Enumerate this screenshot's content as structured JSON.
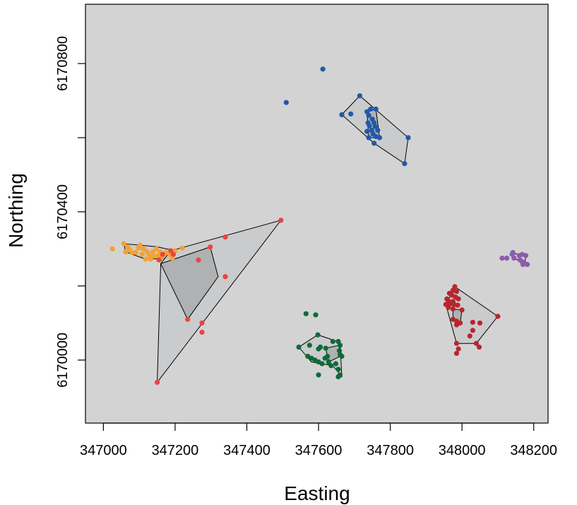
{
  "chart_data": {
    "type": "scatter",
    "xlabel": "Easting",
    "ylabel": "Northing",
    "xlim": [
      346950,
      348240
    ],
    "ylim": [
      6169830,
      6170960
    ],
    "xticks": [
      347000,
      347200,
      347400,
      347600,
      347800,
      348000,
      348200
    ],
    "xtick_labels": [
      "347000",
      "347200",
      "347400",
      "347600",
      "347800",
      "348000",
      "348200"
    ],
    "yticks": [
      6170000,
      6170200,
      6170400,
      6170600,
      6170800
    ],
    "ytick_labels": [
      "6170000",
      "",
      "6170400",
      "",
      "6170800"
    ],
    "grid": false,
    "colors": {
      "panel": "#d3d3d3",
      "hull_fill": "#c9cacb",
      "hull_inner_fill": "#a6a8a9",
      "blue": "#2258a8",
      "orange": "#f3a233",
      "red": "#e84443",
      "green": "#0d6b37",
      "purple": "#8d5ab0",
      "darkred": "#b8262f"
    },
    "series": [
      {
        "color": "#2258a8",
        "points": [
          [
            347612,
            6170785
          ],
          [
            347510,
            6170695
          ],
          [
            347715,
            6170713
          ],
          [
            347665,
            6170662
          ],
          [
            347690,
            6170664
          ],
          [
            347735,
            6170670
          ],
          [
            347745,
            6170677
          ],
          [
            347760,
            6170677
          ],
          [
            347740,
            6170660
          ],
          [
            347750,
            6170650
          ],
          [
            347738,
            6170640
          ],
          [
            347755,
            6170640
          ],
          [
            347742,
            6170632
          ],
          [
            347758,
            6170630
          ],
          [
            347748,
            6170620
          ],
          [
            347765,
            6170620
          ],
          [
            347735,
            6170617
          ],
          [
            347752,
            6170610
          ],
          [
            347760,
            6170603
          ],
          [
            347740,
            6170600
          ],
          [
            347770,
            6170600
          ],
          [
            347850,
            6170600
          ],
          [
            347755,
            6170585
          ],
          [
            347840,
            6170530
          ]
        ],
        "hulls": [
          [
            [
              347665,
              6170662
            ],
            [
              347715,
              6170713
            ],
            [
              347850,
              6170600
            ],
            [
              347840,
              6170530
            ],
            [
              347755,
              6170585
            ],
            [
              347665,
              6170662
            ]
          ],
          [
            [
              347735,
              6170670
            ],
            [
              347760,
              6170677
            ],
            [
              347770,
              6170600
            ],
            [
              347740,
              6170600
            ],
            [
              347735,
              6170670
            ]
          ]
        ]
      },
      {
        "color": "#f3a233",
        "points": [
          [
            347025,
            6170300
          ],
          [
            347057,
            6170314
          ],
          [
            347062,
            6170292
          ],
          [
            347068,
            6170306
          ],
          [
            347073,
            6170298
          ],
          [
            347080,
            6170290
          ],
          [
            347090,
            6170290
          ],
          [
            347098,
            6170302
          ],
          [
            347102,
            6170310
          ],
          [
            347108,
            6170285
          ],
          [
            347112,
            6170300
          ],
          [
            347118,
            6170272
          ],
          [
            347122,
            6170292
          ],
          [
            347128,
            6170282
          ],
          [
            347132,
            6170272
          ],
          [
            347138,
            6170292
          ],
          [
            347142,
            6170280
          ],
          [
            347148,
            6170300
          ],
          [
            347152,
            6170282
          ],
          [
            347158,
            6170292
          ],
          [
            347162,
            6170275
          ],
          [
            347168,
            6170285
          ],
          [
            347175,
            6170290
          ],
          [
            347185,
            6170285
          ],
          [
            347192,
            6170275
          ],
          [
            347200,
            6170295
          ],
          [
            347220,
            6170302
          ]
        ],
        "hulls": [
          [
            [
              347057,
              6170314
            ],
            [
              347062,
              6170292
            ],
            [
              347118,
              6170272
            ],
            [
              347192,
              6170275
            ],
            [
              347200,
              6170295
            ],
            [
              347148,
              6170306
            ],
            [
              347057,
              6170314
            ]
          ]
        ]
      },
      {
        "color": "#e84443",
        "points": [
          [
            347495,
            6170377
          ],
          [
            347340,
            6170332
          ],
          [
            347298,
            6170305
          ],
          [
            347188,
            6170295
          ],
          [
            347195,
            6170285
          ],
          [
            347165,
            6170285
          ],
          [
            347155,
            6170270
          ],
          [
            347265,
            6170270
          ],
          [
            347340,
            6170225
          ],
          [
            347235,
            6170110
          ],
          [
            347275,
            6170100
          ],
          [
            347275,
            6170075
          ],
          [
            347150,
            6169940
          ]
        ],
        "hulls": [
          [
            [
              347150,
              6169940
            ],
            [
              347160,
              6170260
            ],
            [
              347188,
              6170295
            ],
            [
              347495,
              6170377
            ],
            [
              347150,
              6169940
            ]
          ],
          [
            [
              347160,
              6170260
            ],
            [
              347235,
              6170110
            ],
            [
              347320,
              6170225
            ],
            [
              347298,
              6170305
            ],
            [
              347160,
              6170260
            ]
          ]
        ]
      },
      {
        "color": "#0d6b37",
        "points": [
          [
            347565,
            6170125
          ],
          [
            347592,
            6170122
          ],
          [
            347598,
            6170068
          ],
          [
            347640,
            6170050
          ],
          [
            347655,
            6170050
          ],
          [
            347660,
            6170040
          ],
          [
            347545,
            6170035
          ],
          [
            347575,
            6170040
          ],
          [
            347600,
            6170030
          ],
          [
            347605,
            6170035
          ],
          [
            347620,
            6170032
          ],
          [
            347658,
            6170025
          ],
          [
            347660,
            6170015
          ],
          [
            347665,
            6170010
          ],
          [
            347570,
            6170010
          ],
          [
            347580,
            6170005
          ],
          [
            347590,
            6170000
          ],
          [
            347600,
            6169995
          ],
          [
            347610,
            6169990
          ],
          [
            347618,
            6170005
          ],
          [
            347625,
            6170010
          ],
          [
            347628,
            6169995
          ],
          [
            347635,
            6169985
          ],
          [
            347648,
            6169990
          ],
          [
            347655,
            6169975
          ],
          [
            347660,
            6169960
          ],
          [
            347600,
            6169960
          ],
          [
            347655,
            6169955
          ]
        ],
        "hulls": [
          [
            [
              347545,
              6170035
            ],
            [
              347598,
              6170068
            ],
            [
              347660,
              6170048
            ],
            [
              347665,
              6169955
            ],
            [
              347640,
              6169985
            ],
            [
              347580,
              6169995
            ],
            [
              347545,
              6170035
            ]
          ],
          [
            [
              347620,
              6170032
            ],
            [
              347658,
              6170040
            ],
            [
              347660,
              6170010
            ],
            [
              347628,
              6169995
            ],
            [
              347620,
              6170032
            ]
          ]
        ]
      },
      {
        "color": "#8d5ab0",
        "points": [
          [
            348142,
            6170290
          ],
          [
            348140,
            6170285
          ],
          [
            348160,
            6170282
          ],
          [
            348168,
            6170285
          ],
          [
            348178,
            6170282
          ],
          [
            348112,
            6170275
          ],
          [
            348125,
            6170275
          ],
          [
            348145,
            6170275
          ],
          [
            348162,
            6170270
          ],
          [
            348168,
            6170265
          ],
          [
            348175,
            6170260
          ],
          [
            348182,
            6170258
          ],
          [
            348170,
            6170258
          ]
        ],
        "hulls": [
          [
            [
              348140,
              6170288
            ],
            [
              348178,
              6170282
            ],
            [
              348175,
              6170260
            ],
            [
              348145,
              6170275
            ],
            [
              348140,
              6170288
            ]
          ]
        ]
      },
      {
        "color": "#b8262f",
        "points": [
          [
            347980,
            6170198
          ],
          [
            347975,
            6170188
          ],
          [
            347985,
            6170185
          ],
          [
            347965,
            6170180
          ],
          [
            347972,
            6170175
          ],
          [
            347982,
            6170170
          ],
          [
            347958,
            6170165
          ],
          [
            347990,
            6170165
          ],
          [
            347962,
            6170160
          ],
          [
            347975,
            6170158
          ],
          [
            347968,
            6170152
          ],
          [
            347978,
            6170150
          ],
          [
            347988,
            6170148
          ],
          [
            347955,
            6170150
          ],
          [
            347962,
            6170142
          ],
          [
            347975,
            6170138
          ],
          [
            348000,
            6170135
          ],
          [
            348100,
            6170118
          ],
          [
            347975,
            6170110
          ],
          [
            347985,
            6170105
          ],
          [
            347995,
            6170100
          ],
          [
            347985,
            6170095
          ],
          [
            348030,
            6170102
          ],
          [
            348050,
            6170100
          ],
          [
            348030,
            6170080
          ],
          [
            348022,
            6170065
          ],
          [
            347985,
            6170045
          ],
          [
            348040,
            6170045
          ],
          [
            348048,
            6170035
          ],
          [
            347990,
            6170030
          ],
          [
            347985,
            6170018
          ]
        ],
        "hulls": [
          [
            [
              347955,
              6170150
            ],
            [
              347980,
              6170198
            ],
            [
              348100,
              6170118
            ],
            [
              348040,
              6170045
            ],
            [
              347985,
              6170045
            ],
            [
              347955,
              6170150
            ]
          ],
          [
            [
              347975,
              6170138
            ],
            [
              348000,
              6170135
            ],
            [
              347995,
              6170100
            ],
            [
              347975,
              6170110
            ],
            [
              347975,
              6170138
            ]
          ]
        ]
      }
    ]
  }
}
